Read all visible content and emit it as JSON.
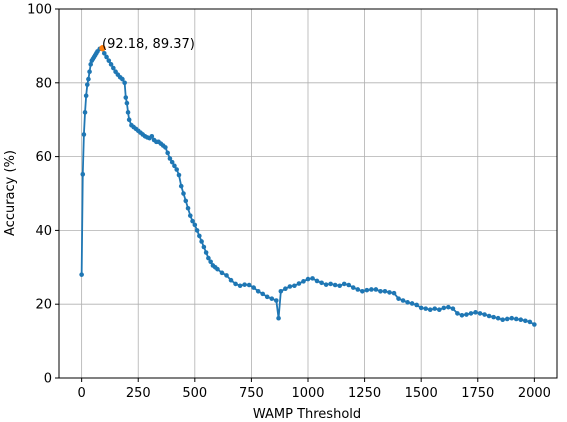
{
  "chart_data": {
    "type": "line",
    "title": "",
    "xlabel": "WAMP Threshold",
    "ylabel": "Accuracy (%)",
    "xlim": [
      -100,
      2100
    ],
    "ylim": [
      0,
      100
    ],
    "xticks": [
      0,
      250,
      500,
      750,
      1000,
      1250,
      1500,
      1750,
      2000
    ],
    "yticks": [
      0,
      20,
      40,
      60,
      80,
      100
    ],
    "grid": true,
    "legend": "none",
    "series_color": "#1f77b4",
    "highlight_color": "#ff7f0e",
    "series": [
      {
        "marker": "circle",
        "x": [
          0,
          5,
          10,
          15,
          20,
          25,
          30,
          35,
          40,
          45,
          50,
          55,
          60,
          65,
          70,
          80,
          90,
          100,
          110,
          120,
          130,
          140,
          150,
          160,
          170,
          180,
          190,
          195,
          200,
          205,
          210,
          220,
          230,
          240,
          250,
          260,
          270,
          280,
          290,
          300,
          310,
          320,
          330,
          340,
          350,
          360,
          370,
          380,
          390,
          400,
          410,
          420,
          430,
          440,
          450,
          460,
          470,
          480,
          490,
          500,
          510,
          520,
          530,
          540,
          550,
          560,
          570,
          580,
          590,
          600,
          620,
          640,
          660,
          680,
          700,
          720,
          740,
          760,
          780,
          800,
          820,
          840,
          860,
          870,
          880,
          900,
          920,
          940,
          960,
          980,
          1000,
          1020,
          1040,
          1060,
          1080,
          1100,
          1120,
          1140,
          1160,
          1180,
          1200,
          1220,
          1240,
          1260,
          1280,
          1300,
          1320,
          1340,
          1360,
          1380,
          1400,
          1420,
          1440,
          1460,
          1480,
          1500,
          1520,
          1540,
          1560,
          1580,
          1600,
          1620,
          1640,
          1660,
          1680,
          1700,
          1720,
          1740,
          1760,
          1780,
          1800,
          1820,
          1840,
          1860,
          1880,
          1900,
          1920,
          1940,
          1960,
          1980,
          2000
        ],
        "y": [
          28,
          55.2,
          66,
          72,
          76.5,
          79.5,
          81,
          83,
          85,
          86,
          86.5,
          87,
          87.5,
          88,
          88.5,
          89.2,
          89.37,
          88,
          87,
          86,
          85,
          84,
          83,
          82.2,
          81.5,
          81,
          80,
          76,
          74.5,
          72,
          70,
          68.5,
          68,
          67.5,
          67,
          66.5,
          66,
          65.5,
          65.2,
          65,
          65.5,
          64.5,
          64,
          64,
          63.5,
          63,
          62.5,
          61,
          59.5,
          58.5,
          57.5,
          56.5,
          55,
          52,
          50,
          48,
          46,
          44,
          42.5,
          41.5,
          40,
          38.5,
          37,
          35.5,
          34,
          32.5,
          31.5,
          30.5,
          30,
          29.5,
          28.5,
          27.8,
          26.5,
          25.5,
          25,
          25.3,
          25.2,
          24.5,
          23.5,
          22.8,
          22,
          21.5,
          21,
          16.2,
          23.5,
          24.2,
          24.8,
          25,
          25.6,
          26.2,
          26.8,
          27,
          26.3,
          25.8,
          25.3,
          25.5,
          25.2,
          25,
          25.5,
          25.2,
          24.5,
          24,
          23.5,
          23.8,
          24,
          24,
          23.5,
          23.5,
          23.2,
          23,
          21.5,
          21,
          20.5,
          20.2,
          19.8,
          19,
          18.8,
          18.5,
          18.8,
          18.5,
          19,
          19.2,
          18.8,
          17.5,
          17,
          17.2,
          17.5,
          17.8,
          17.5,
          17.2,
          16.8,
          16.5,
          16.2,
          15.8,
          16,
          16.2,
          16,
          15.8,
          15.5,
          15.2,
          14.5
        ]
      }
    ],
    "highlight_point": {
      "x": 92.18,
      "y": 89.37
    },
    "annotation": "(92.18, 89.37)"
  }
}
